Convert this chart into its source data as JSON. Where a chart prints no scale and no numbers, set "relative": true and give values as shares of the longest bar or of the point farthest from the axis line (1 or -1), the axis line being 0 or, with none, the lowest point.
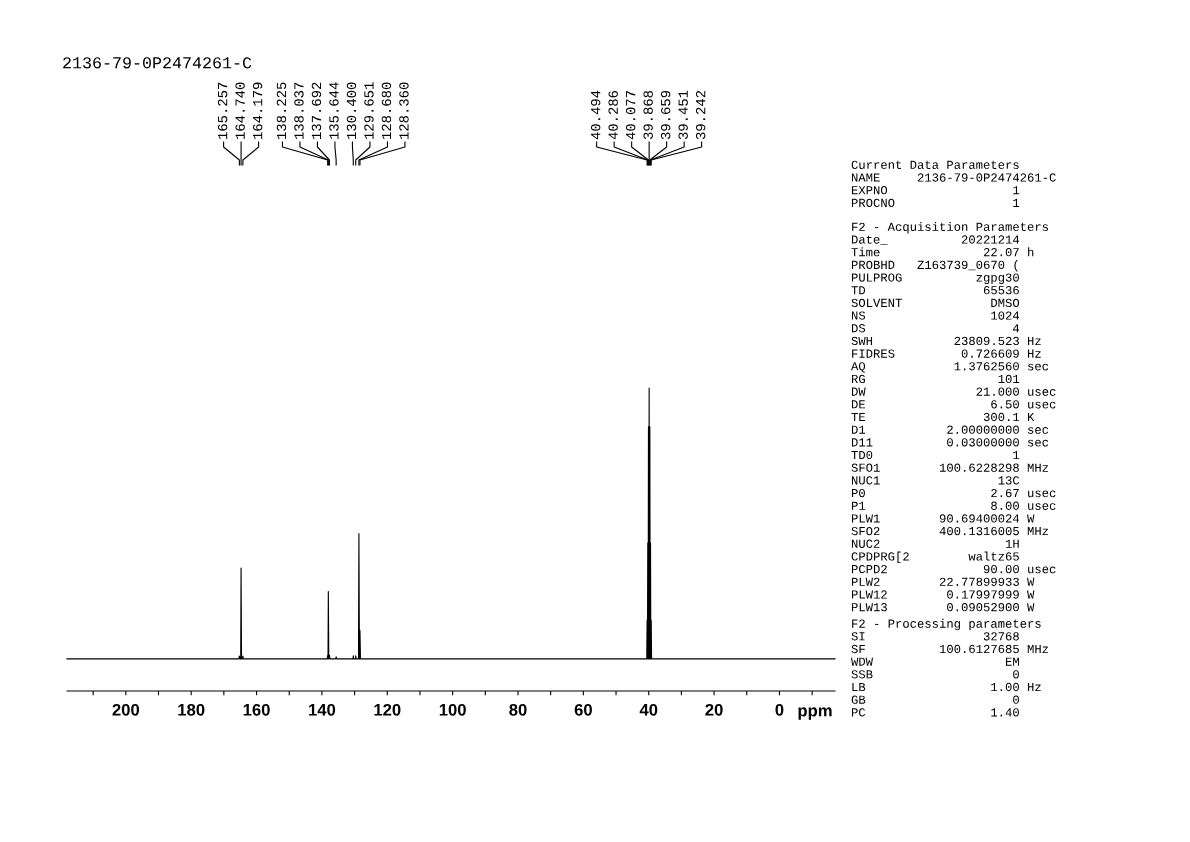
{
  "chart_data": {
    "type": "line",
    "title": "2136-79-0P2474261-C",
    "xlabel": "ppm",
    "relative": true,
    "tick_labels": "x",
    "xlim": [
      218,
      -17
    ],
    "xticks": [
      {
        "value": 210,
        "label": null
      },
      200,
      {
        "value": 190,
        "label": null
      },
      180,
      {
        "value": 170,
        "label": null
      },
      160,
      {
        "value": 150,
        "label": null
      },
      140,
      {
        "value": 130,
        "label": null
      },
      120,
      {
        "value": 110,
        "label": null
      },
      100,
      {
        "value": 90,
        "label": null
      },
      80,
      {
        "value": 70,
        "label": null
      },
      60,
      {
        "value": 50,
        "label": null
      },
      40,
      {
        "value": 30,
        "label": null
      },
      20,
      {
        "value": 10,
        "label": null
      },
      0,
      {
        "value": -10,
        "label": null
      }
    ],
    "series": [
      {
        "color": "#000000",
        "x": [
          218,
          165.4,
          165.257,
          165.1,
          164.85,
          164.74,
          164.6,
          164.3,
          164.179,
          164.05,
          138.4,
          138.225,
          138.13,
          138.037,
          137.9,
          137.692,
          137.55,
          135.8,
          135.644,
          135.5,
          130.5,
          130.4,
          130.3,
          129.75,
          129.651,
          129.55,
          128.8,
          128.68,
          128.52,
          128.36,
          128.2,
          40.6,
          40.494,
          40.39,
          40.286,
          40.18,
          40.077,
          39.97,
          39.868,
          39.76,
          39.659,
          39.55,
          39.451,
          39.35,
          39.242,
          39.13,
          -17
        ],
        "values": [
          0.106,
          0.106,
          0.115,
          0.106,
          0.106,
          0.406,
          0.106,
          0.106,
          0.115,
          0.106,
          0.106,
          0.118,
          0.106,
          0.328,
          0.106,
          0.118,
          0.106,
          0.106,
          0.113,
          0.106,
          0.106,
          0.116,
          0.106,
          0.106,
          0.116,
          0.106,
          0.106,
          0.52,
          0.106,
          0.2,
          0.106,
          0.106,
          0.234,
          0.106,
          0.489,
          0.106,
          0.872,
          0.106,
          1.0,
          0.106,
          0.872,
          0.106,
          0.489,
          0.106,
          0.234,
          0.106,
          0.106
        ]
      }
    ],
    "annotations": [
      {
        "text": "165.257",
        "x": 165.257
      },
      {
        "text": "164.740",
        "x": 164.74
      },
      {
        "text": "164.179",
        "x": 164.179
      },
      {
        "text": "138.225",
        "x": 138.225
      },
      {
        "text": "138.037",
        "x": 138.037
      },
      {
        "text": "137.692",
        "x": 137.692
      },
      {
        "text": "135.644",
        "x": 135.644
      },
      {
        "text": "130.400",
        "x": 130.4
      },
      {
        "text": "129.651",
        "x": 129.651
      },
      {
        "text": "128.680",
        "x": 128.68
      },
      {
        "text": "128.360",
        "x": 128.36
      },
      {
        "text": "40.494",
        "x": 40.494
      },
      {
        "text": "40.286",
        "x": 40.286
      },
      {
        "text": "40.077",
        "x": 40.077
      },
      {
        "text": "39.868",
        "x": 39.868
      },
      {
        "text": "39.659",
        "x": 39.659
      },
      {
        "text": "39.451",
        "x": 39.451
      },
      {
        "text": "39.242",
        "x": 39.242
      },
      "Current Data Parameters\nNAME     2136-79-0P2474261-C\nEXPNO                 1\nPROCNO                1",
      "F2 - Acquisition Parameters\nDate_          20221214\nTime              22.07 h\nPROBHD   Z163739_0670 (\nPULPROG          zgpg30\nTD                65536\nSOLVENT            DMSO\nNS                 1024\nDS                    4\nSWH           23809.523 Hz\nFIDRES         0.726609 Hz\nAQ            1.3762560 sec\nRG                  101\nDW               21.000 usec\nDE                 6.50 usec\nTE                300.1 K\nD1           2.00000000 sec\nD11          0.03000000 sec\nTD0                   1\nSFO1        100.6228298 MHz\nNUC1                13C\nP0                 2.67 usec\nP1                 8.00 usec\nPLW1        90.69400024 W\nSFO2        400.1316005 MHz\nNUC2                 1H\nCPDPRG[2        waltz65\nPCPD2             90.00 usec\nPLW2        22.77899933 W\nPLW12        0.17997999 W\nPLW13        0.09052900 W",
      "F2 - Processing parameters\nSI                32768\nSF          100.6127685 MHz\nWDW                  EM\nSSB                   0\nLB                 1.00 Hz\nGB                    0\nPC                 1.40"
    ]
  }
}
